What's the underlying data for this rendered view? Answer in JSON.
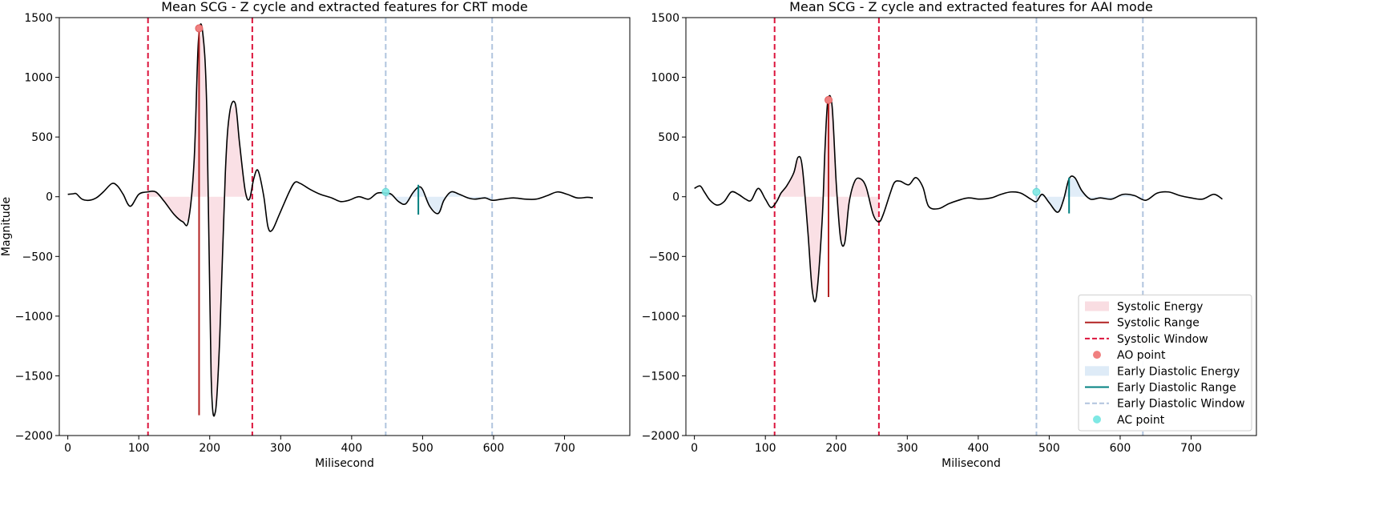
{
  "chart_data": [
    {
      "type": "line",
      "title": "Mean SCG - Z cycle and extracted features for CRT mode",
      "xlabel": "Milisecond",
      "ylabel": "Magnitude",
      "xlim": [
        -12,
        792
      ],
      "ylim": [
        -2000,
        1500
      ],
      "xticks": [
        0,
        100,
        200,
        300,
        400,
        500,
        600,
        700
      ],
      "yticks": [
        -2000,
        -1500,
        -1000,
        -500,
        0,
        500,
        1000,
        1500
      ],
      "signal": {
        "x": [
          0,
          8,
          12,
          20,
          30,
          40,
          50,
          62,
          70,
          78,
          88,
          100,
          112,
          124,
          136,
          150,
          162,
          170,
          178,
          184,
          190,
          196,
          202,
          208,
          214,
          222,
          228,
          236,
          242,
          250,
          256,
          262,
          268,
          276,
          282,
          288,
          298,
          312,
          320,
          328,
          342,
          356,
          372,
          384,
          396,
          410,
          424,
          436,
          448,
          456,
          466,
          476,
          486,
          494,
          500,
          510,
          522,
          530,
          540,
          552,
          564,
          574,
          588,
          598,
          612,
          628,
          644,
          660,
          676,
          690,
          704,
          718,
          732,
          740
        ],
        "y": [
          20,
          25,
          25,
          -20,
          -30,
          -10,
          40,
          110,
          90,
          20,
          -80,
          20,
          40,
          40,
          -40,
          -150,
          -210,
          -200,
          300,
          1300,
          1380,
          700,
          -1500,
          -1800,
          -1200,
          200,
          700,
          780,
          450,
          50,
          -20,
          150,
          220,
          10,
          -250,
          -280,
          -150,
          40,
          120,
          110,
          60,
          20,
          -10,
          -40,
          -30,
          0,
          -20,
          30,
          30,
          20,
          -40,
          -60,
          30,
          80,
          60,
          -80,
          -140,
          -30,
          40,
          20,
          -10,
          -20,
          -10,
          -30,
          -20,
          -10,
          -20,
          -20,
          10,
          40,
          20,
          -10,
          -5,
          -10
        ]
      },
      "systolic_window": [
        113,
        260
      ],
      "systolic_range": {
        "x": 185,
        "y": [
          -1830,
          1400
        ]
      },
      "ao_point": {
        "x": 185,
        "y": 1410
      },
      "early_diastolic_window": [
        448,
        598
      ],
      "early_diastolic_range": {
        "x": 494,
        "y": [
          -150,
          100
        ]
      },
      "ac_point": {
        "x": 448,
        "y": 40
      }
    },
    {
      "type": "line",
      "title": "Mean SCG - Z cycle and extracted features for AAI mode",
      "xlabel": "Milisecond",
      "ylabel": "",
      "xlim": [
        -12,
        792
      ],
      "ylim": [
        -2000,
        1500
      ],
      "xticks": [
        0,
        100,
        200,
        300,
        400,
        500,
        600,
        700
      ],
      "yticks": [
        -2000,
        -1500,
        -1000,
        -500,
        0,
        500,
        1000,
        1500
      ],
      "signal": {
        "x": [
          0,
          8,
          14,
          22,
          32,
          42,
          52,
          62,
          72,
          80,
          90,
          100,
          108,
          116,
          122,
          130,
          140,
          146,
          152,
          160,
          166,
          172,
          180,
          184,
          188,
          194,
          200,
          206,
          212,
          218,
          226,
          234,
          242,
          252,
          260,
          266,
          276,
          282,
          290,
          302,
          312,
          322,
          330,
          344,
          358,
          372,
          386,
          402,
          418,
          432,
          446,
          460,
          474,
          482,
          490,
          500,
          512,
          520,
          528,
          536,
          546,
          558,
          572,
          588,
          604,
          620,
          636,
          652,
          668,
          684,
          700,
          716,
          732,
          744
        ],
        "y": [
          70,
          90,
          40,
          -30,
          -70,
          -40,
          40,
          20,
          -20,
          -30,
          70,
          -20,
          -90,
          -40,
          30,
          90,
          200,
          330,
          250,
          -300,
          -780,
          -830,
          -200,
          400,
          800,
          760,
          100,
          -350,
          -380,
          -50,
          130,
          150,
          80,
          -150,
          -210,
          -150,
          30,
          120,
          130,
          100,
          160,
          80,
          -80,
          -100,
          -60,
          -30,
          -10,
          -20,
          -10,
          20,
          40,
          30,
          -20,
          -40,
          20,
          -50,
          -130,
          -30,
          150,
          160,
          50,
          -20,
          -10,
          -20,
          20,
          10,
          -30,
          30,
          40,
          10,
          -10,
          -20,
          20,
          -20
        ]
      },
      "systolic_window": [
        113,
        260
      ],
      "systolic_range": {
        "x": 189,
        "y": [
          -840,
          800
        ]
      },
      "ao_point": {
        "x": 189,
        "y": 810
      },
      "early_diastolic_window": [
        482,
        632
      ],
      "early_diastolic_range": {
        "x": 528,
        "y": [
          -140,
          160
        ]
      },
      "ac_point": {
        "x": 482,
        "y": 40
      }
    }
  ],
  "legend": {
    "location": "lower-right",
    "entries": [
      {
        "label": "Systolic Energy",
        "kind": "patch",
        "color": "#f9dde2"
      },
      {
        "label": "Systolic Range",
        "kind": "line",
        "color": "#b22222"
      },
      {
        "label": "Systolic Window",
        "kind": "dashed",
        "color": "#dc143c"
      },
      {
        "label": "AO point",
        "kind": "dot",
        "color": "#f08080"
      },
      {
        "label": "Early Diastolic Energy",
        "kind": "patch",
        "color": "#deebf7"
      },
      {
        "label": "Early Diastolic Range",
        "kind": "line",
        "color": "#008080"
      },
      {
        "label": "Early Diastolic Window",
        "kind": "dashed",
        "color": "#b0c4de"
      },
      {
        "label": "AC point",
        "kind": "dot",
        "color": "#7fe8e4"
      }
    ]
  },
  "colors": {
    "signal": "#000000",
    "systolic_fill": "#f9dde2",
    "systolic_range": "#b22222",
    "systolic_window": "#dc143c",
    "ao_point": "#f08080",
    "diastolic_fill": "#deebf7",
    "diastolic_range": "#008080",
    "diastolic_window": "#b0c4de",
    "ac_point": "#7fe8e4"
  }
}
